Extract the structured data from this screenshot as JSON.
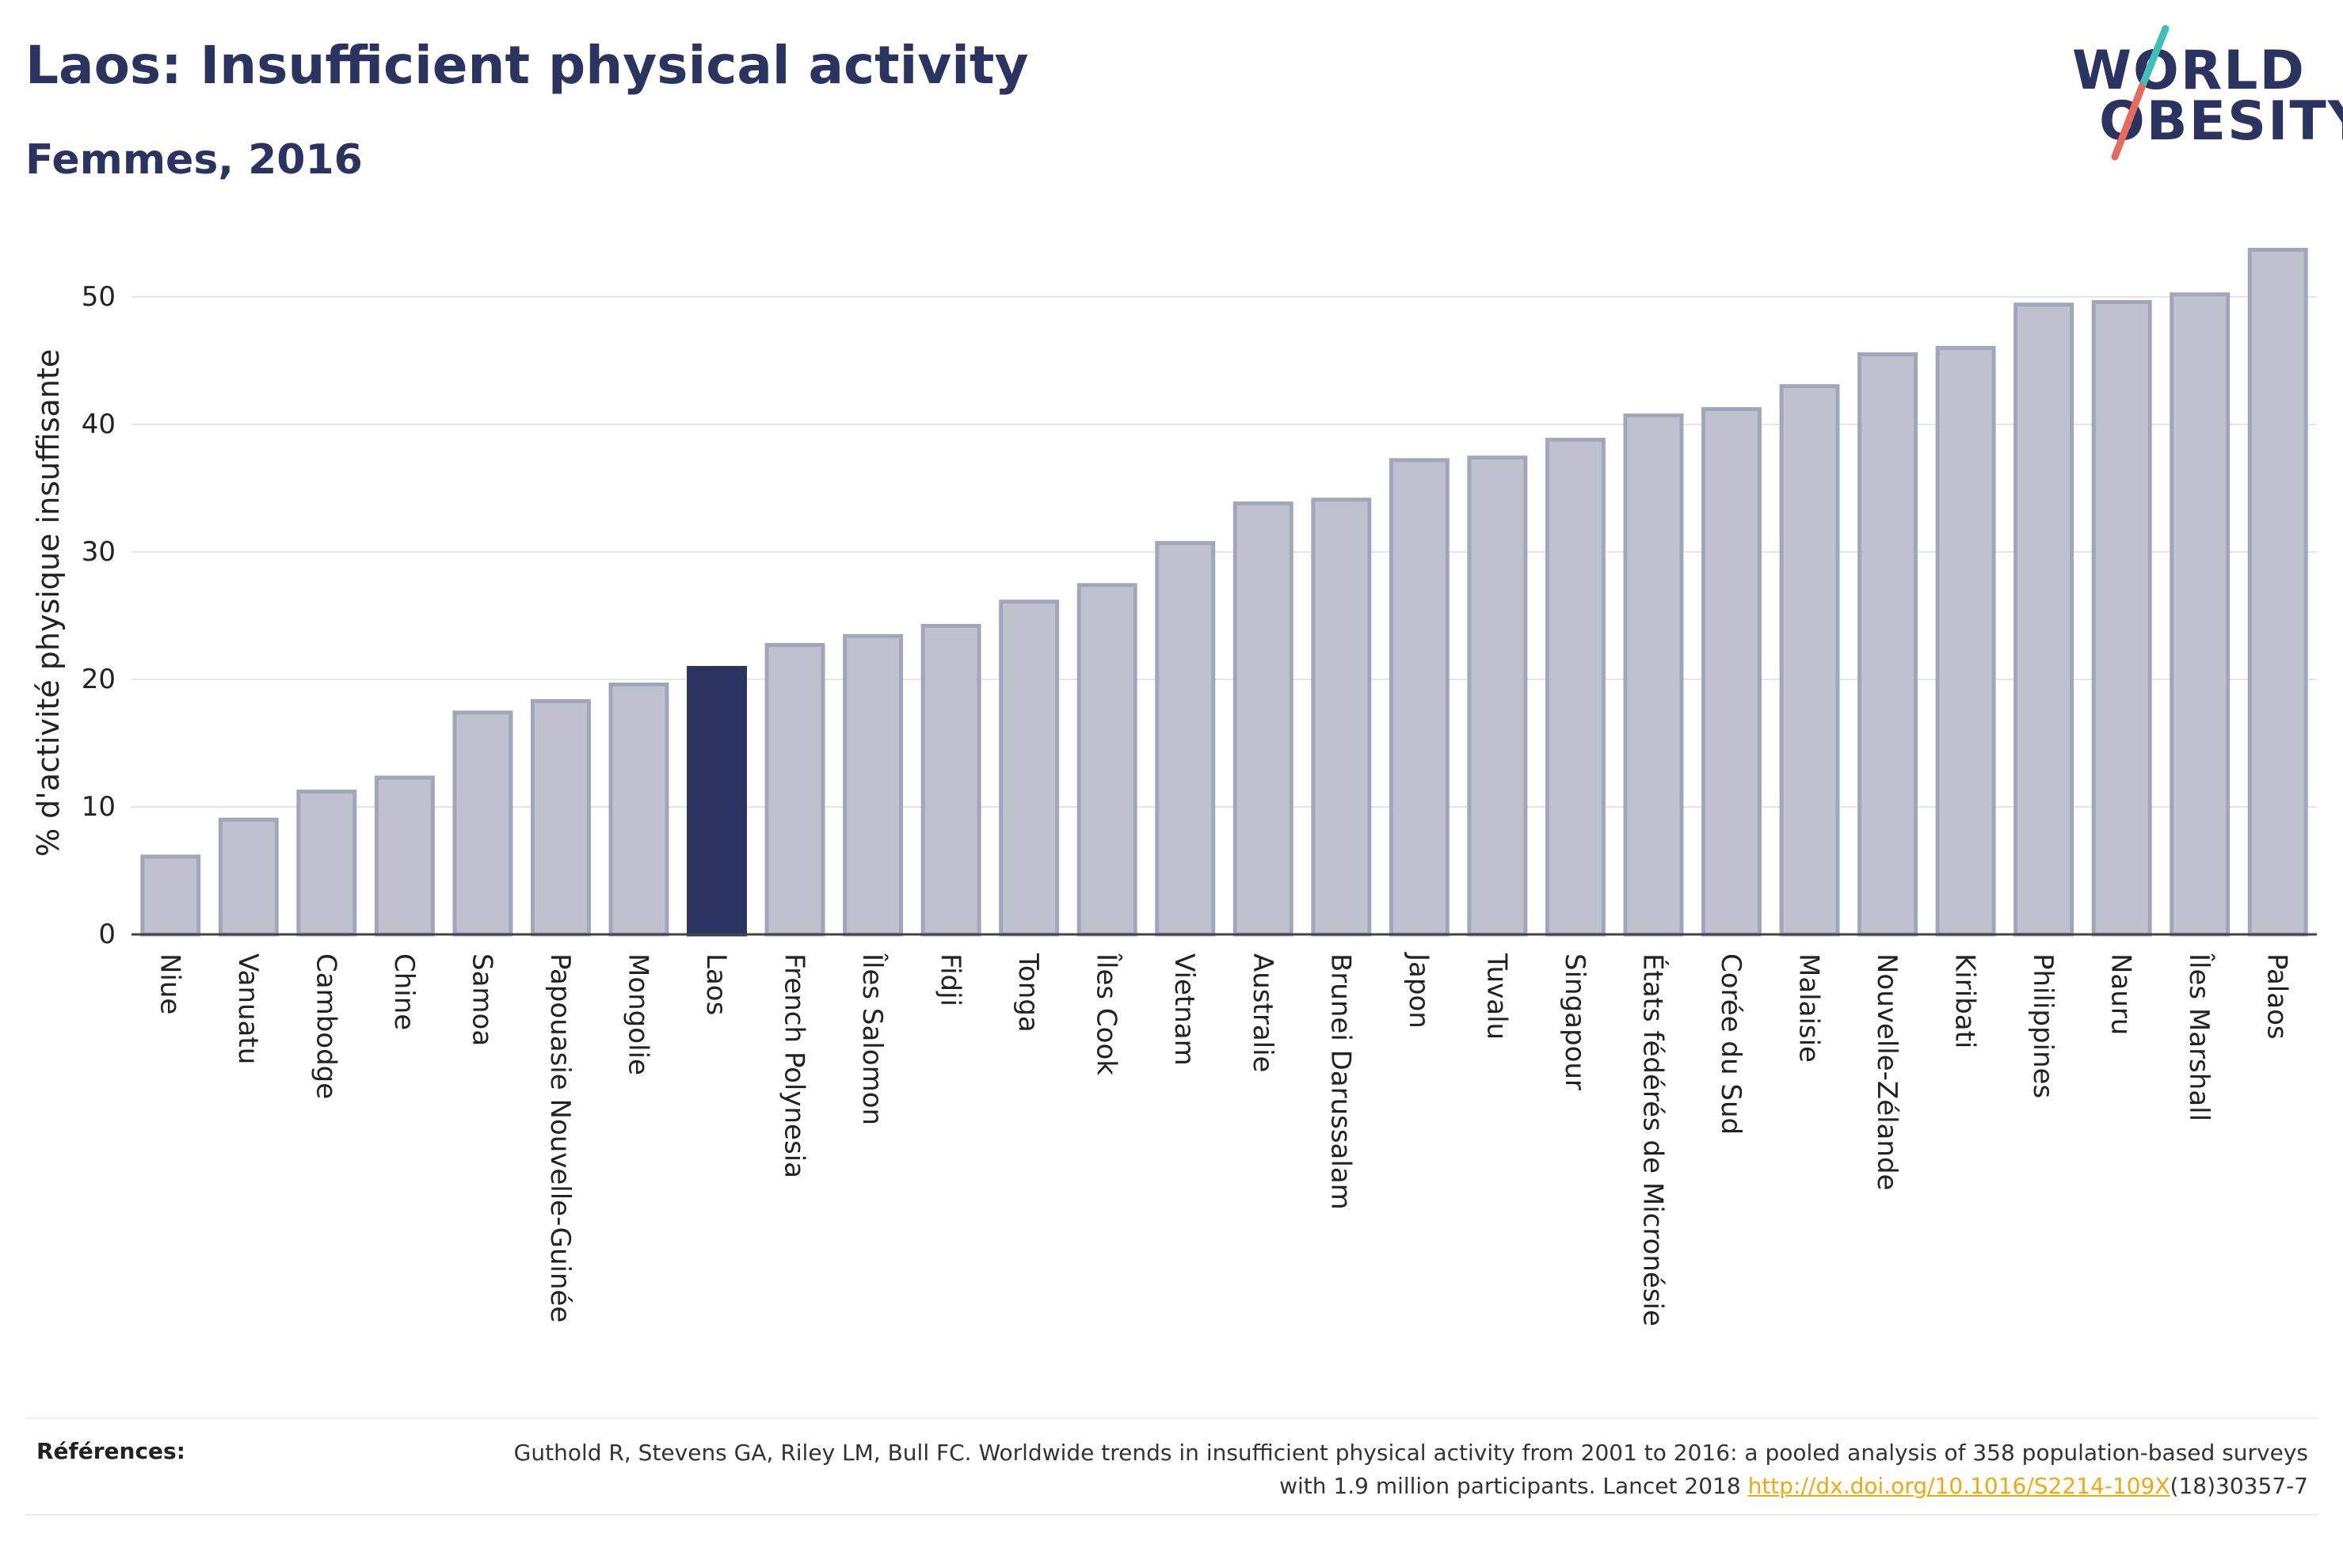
{
  "header": {
    "title": "Laos: Insufficient physical activity",
    "subtitle": "Femmes, 2016"
  },
  "logo": {
    "line1": "WORLD",
    "line2": "OBESITY",
    "colors": {
      "text": "#2b3460",
      "slash_top": "#3fbfb5",
      "slash_bottom": "#e86a5a"
    }
  },
  "chart_data": {
    "type": "bar",
    "ylabel": "% d'activité physique insuffisante",
    "xlabel": "",
    "ylim": [
      0,
      56
    ],
    "yticks": [
      0,
      10,
      20,
      30,
      40,
      50
    ],
    "grid": true,
    "highlight": "Laos",
    "colors": {
      "bar": "#bfc2ce",
      "bar_edge": "#a1a6bb",
      "highlight": "#2b3460"
    },
    "categories": [
      "Niue",
      "Vanuatu",
      "Cambodge",
      "Chine",
      "Samoa",
      "Papouasie Nouvelle-Guinée",
      "Mongolie",
      "Laos",
      "French Polynesia",
      "Îles Salomon",
      "Fidji",
      "Tonga",
      "Îles Cook",
      "Vietnam",
      "Australie",
      "Brunei Darussalam",
      "Japon",
      "Tuvalu",
      "Singapour",
      "États fédérés de Micronésie",
      "Corée du Sud",
      "Malaisie",
      "Nouvelle-Zélande",
      "Kiribati",
      "Philippines",
      "Nauru",
      "Îles Marshall",
      "Palaos"
    ],
    "values": [
      6.1,
      9.0,
      11.2,
      12.3,
      17.4,
      18.3,
      19.6,
      20.9,
      22.7,
      23.4,
      24.2,
      26.1,
      27.4,
      30.7,
      33.8,
      34.1,
      37.2,
      37.4,
      38.8,
      40.7,
      41.2,
      43.0,
      45.5,
      46.0,
      49.4,
      49.6,
      50.2,
      53.7
    ]
  },
  "references": {
    "label": "Références:",
    "text_before": "Guthold R, Stevens GA, Riley LM, Bull FC. Worldwide trends in insufficient physical activity from 2001 to 2016: a pooled analysis of 358 population-based surveys with 1.9 million participants. Lancet 2018 ",
    "link_text": "http://dx.doi.org/10.1016/S2214-109X",
    "text_after": "(18)30357-7"
  }
}
